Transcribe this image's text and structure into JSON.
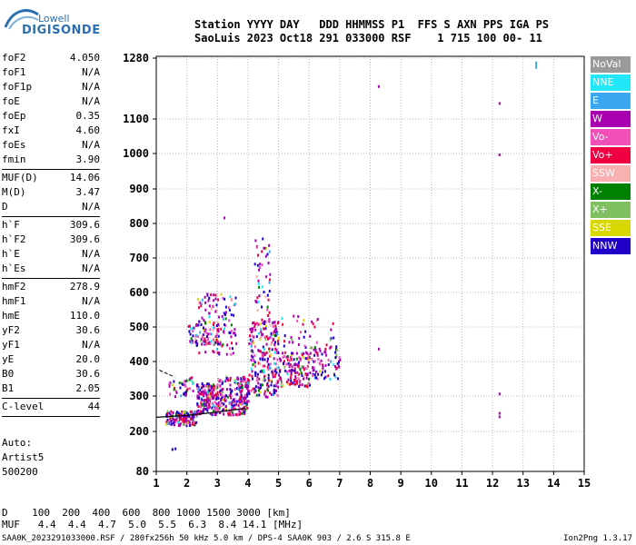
{
  "logo": {
    "top": "Lowell",
    "bottom": "DIGISONDE"
  },
  "header": {
    "line1": "Station YYYY DAY   DDD HHMMSS P1  FFS S AXN PPS IGA PS",
    "line2": "SaoLuis 2023 Oct18 291 033000 RSF    1 715 100 00- 11"
  },
  "params": [
    {
      "label": "foF2",
      "value": "4.050"
    },
    {
      "label": "foF1",
      "value": "N/A"
    },
    {
      "label": "foF1p",
      "value": "N/A"
    },
    {
      "label": "foE",
      "value": "N/A"
    },
    {
      "label": "foEp",
      "value": "0.35"
    },
    {
      "label": "fxI",
      "value": "4.60"
    },
    {
      "label": "foEs",
      "value": "N/A"
    },
    {
      "label": "fmin",
      "value": "3.90",
      "sep_after": true
    },
    {
      "label": "MUF(D)",
      "value": "14.06"
    },
    {
      "label": "M(D)",
      "value": "3.47"
    },
    {
      "label": "D",
      "value": "N/A",
      "sep_after": true
    },
    {
      "label": "h`F",
      "value": "309.6"
    },
    {
      "label": "h`F2",
      "value": "309.6"
    },
    {
      "label": "h`E",
      "value": "N/A"
    },
    {
      "label": "h`Es",
      "value": "N/A",
      "sep_after": true
    },
    {
      "label": "hmF2",
      "value": "278.9"
    },
    {
      "label": "hmF1",
      "value": "N/A"
    },
    {
      "label": "hmE",
      "value": "110.0"
    },
    {
      "label": "yF2",
      "value": "30.6"
    },
    {
      "label": "yF1",
      "value": "N/A"
    },
    {
      "label": "yE",
      "value": "20.0"
    },
    {
      "label": "B0",
      "value": "30.6"
    },
    {
      "label": "B1",
      "value": "2.05",
      "sep_after": true
    },
    {
      "label": "C-level",
      "value": "44",
      "sep_after": true
    }
  ],
  "autoscale": [
    "Auto:",
    "Artist5",
    "500200"
  ],
  "legend": [
    {
      "label": "NoVal",
      "color": "#9a9a9a"
    },
    {
      "label": "NNE",
      "color": "#20e8f8"
    },
    {
      "label": "E",
      "color": "#3aa8f0"
    },
    {
      "label": "W",
      "color": "#a800b0"
    },
    {
      "label": "Vo-",
      "color": "#f050b8"
    },
    {
      "label": "Vo+",
      "color": "#f00040"
    },
    {
      "label": "SSW",
      "color": "#f8b0b0"
    },
    {
      "label": "X-",
      "color": "#008000"
    },
    {
      "label": "X+",
      "color": "#80c060"
    },
    {
      "label": "SSE",
      "color": "#d8d800"
    },
    {
      "label": "NNW",
      "color": "#2000c8"
    }
  ],
  "bottom": {
    "line1": "D    100  200  400  600  800 1000 1500 3000 [km]",
    "line2": "MUF   4.4  4.4  4.7  5.0  5.5  6.3  8.4 14.1 [MHz]"
  },
  "footer": "SAA0K_2023291033000.RSF / 280fx256h 50 kHz 5.0 km / DPS-4 SAA0K 903 / 2.6 S 315.8 E",
  "version": "Ion2Png 1.3.17",
  "chart_data": {
    "type": "scatter",
    "x_ticks": [
      "1",
      "2",
      "3",
      "4",
      "5",
      "6",
      "7",
      "8",
      "9",
      "10",
      "11",
      "12",
      "13",
      "14",
      "15"
    ],
    "y_ticks": [
      "80",
      "200",
      "300",
      "400",
      "500",
      "600",
      "700",
      "800",
      "900",
      "1000",
      "1100",
      "1280"
    ],
    "xlim": [
      1,
      15
    ],
    "ylim": [
      80,
      1280
    ],
    "y_scale": "nonlinear (ionogram virtual height)",
    "grid": true,
    "legend_position": "right",
    "clusters": [
      {
        "x": [
          1.3,
          2.3
        ],
        "y": [
          220,
          260
        ],
        "n": 140
      },
      {
        "x": [
          2.3,
          3.0
        ],
        "y": [
          250,
          340
        ],
        "n": 170
      },
      {
        "x": [
          3.0,
          4.0
        ],
        "y": [
          250,
          360
        ],
        "n": 220
      },
      {
        "x": [
          4.0,
          5.0
        ],
        "y": [
          300,
          520
        ],
        "n": 240
      },
      {
        "x": [
          5.0,
          6.0
        ],
        "y": [
          330,
          430
        ],
        "n": 140
      },
      {
        "x": [
          6.0,
          7.0
        ],
        "y": [
          350,
          450
        ],
        "n": 80
      },
      {
        "x": [
          2.0,
          3.0
        ],
        "y": [
          450,
          520
        ],
        "n": 70
      },
      {
        "x": [
          2.3,
          3.6
        ],
        "y": [
          420,
          600
        ],
        "n": 120
      },
      {
        "x": [
          1.4,
          2.2
        ],
        "y": [
          300,
          360
        ],
        "n": 40
      },
      {
        "x": [
          4.2,
          4.7
        ],
        "y": [
          520,
          760
        ],
        "n": 50
      },
      {
        "x": [
          4.8,
          6.8
        ],
        "y": [
          440,
          540
        ],
        "n": 40
      }
    ],
    "isolated": [
      {
        "x": 1.5,
        "y": 150
      },
      {
        "x": 1.6,
        "y": 152
      },
      {
        "x": 8.25,
        "y": 1200
      },
      {
        "x": 8.25,
        "y": 440
      },
      {
        "x": 12.2,
        "y": 1150
      },
      {
        "x": 12.2,
        "y": 1000
      },
      {
        "x": 12.2,
        "y": 310
      },
      {
        "x": 12.2,
        "y": 255
      },
      {
        "x": 12.2,
        "y": 245
      },
      {
        "x": 13.4,
        "y": 1270
      },
      {
        "x": 3.2,
        "y": 820
      }
    ],
    "trace_line": [
      {
        "x": 1.0,
        "y": 240
      },
      {
        "x": 2.0,
        "y": 245
      },
      {
        "x": 3.0,
        "y": 255
      },
      {
        "x": 3.9,
        "y": 265
      }
    ],
    "trace_line2": [
      {
        "x": 1.1,
        "y": 375
      },
      {
        "x": 1.6,
        "y": 355
      }
    ]
  }
}
